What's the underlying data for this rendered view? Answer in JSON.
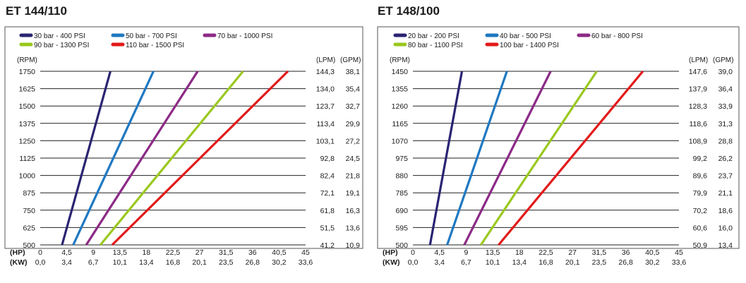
{
  "chart_data": [
    {
      "type": "line",
      "title": "ET 144/110",
      "y_unit_label": "(RPM)",
      "right_unit_labels": [
        "(LPM)",
        "(GPM)"
      ],
      "x_unit_labels": [
        "(HP)",
        "(KW)"
      ],
      "rpm_ticks": [
        "1750",
        "1625",
        "1500",
        "1375",
        "1250",
        "1125",
        "1000",
        "875",
        "750",
        "625",
        "500"
      ],
      "rpm_range": [
        500,
        1750
      ],
      "lpm_ticks": [
        "144,3",
        "134,0",
        "123,7",
        "113,4",
        "103,1",
        "92,8",
        "82,4",
        "72,1",
        "61,8",
        "51,5",
        "41,2"
      ],
      "gpm_ticks": [
        "38,1",
        "35,4",
        "32,7",
        "29,9",
        "27,2",
        "24,5",
        "21,8",
        "19,1",
        "16,3",
        "13,6",
        "10,9"
      ],
      "hp_ticks": [
        "0",
        "4,5",
        "9",
        "13,5",
        "18",
        "22,5",
        "27",
        "31,5",
        "36",
        "40,5",
        "45"
      ],
      "kw_ticks": [
        "0,0",
        "3,4",
        "6,7",
        "10,1",
        "13,4",
        "16,8",
        "20,1",
        "23,5",
        "26,8",
        "30,2",
        "33,6"
      ],
      "hp_range": [
        0,
        45
      ],
      "grid": "horizontal",
      "series": [
        {
          "name": "30 bar - 400 PSI",
          "color": "#2a2472",
          "hp": [
            3.7,
            11.9
          ],
          "rpm": [
            500,
            1750
          ]
        },
        {
          "name": "50 bar - 700 PSI",
          "color": "#1f78c1",
          "hp": [
            5.6,
            19.2
          ],
          "rpm": [
            500,
            1750
          ]
        },
        {
          "name": "70 bar - 1000 PSI",
          "color": "#8c2a86",
          "hp": [
            7.8,
            26.7
          ],
          "rpm": [
            500,
            1750
          ]
        },
        {
          "name": "90 bar - 1300 PSI",
          "color": "#9ac81f",
          "hp": [
            10.2,
            34.4
          ],
          "rpm": [
            500,
            1750
          ]
        },
        {
          "name": "110 bar - 1500 PSI",
          "color": "#e21a1a",
          "hp": [
            12.2,
            42.0
          ],
          "rpm": [
            500,
            1750
          ]
        }
      ]
    },
    {
      "type": "line",
      "title": "ET 148/100",
      "y_unit_label": "(RPM)",
      "right_unit_labels": [
        "(LPM)",
        "(GPM)"
      ],
      "x_unit_labels": [
        "(HP)",
        "(KW)"
      ],
      "rpm_ticks": [
        "1450",
        "1355",
        "1260",
        "1165",
        "1070",
        "975",
        "880",
        "785",
        "690",
        "595",
        "500"
      ],
      "rpm_range": [
        500,
        1450
      ],
      "lpm_ticks": [
        "147,6",
        "137,9",
        "128,3",
        "118,6",
        "108,9",
        "99,2",
        "89,6",
        "79,9",
        "70,2",
        "60,6",
        "50,9"
      ],
      "gpm_ticks": [
        "39,0",
        "36,4",
        "33,9",
        "31,3",
        "28,8",
        "26,2",
        "23,7",
        "21,1",
        "18,6",
        "16,0",
        "13,4"
      ],
      "hp_ticks": [
        "0",
        "4,5",
        "9",
        "13,5",
        "18",
        "22,5",
        "27",
        "31,5",
        "36",
        "40,5",
        "45"
      ],
      "kw_ticks": [
        "0,0",
        "3,4",
        "6,7",
        "10,1",
        "13,4",
        "16,8",
        "20,1",
        "23,5",
        "26,8",
        "30,2",
        "33,6"
      ],
      "hp_range": [
        0,
        45
      ],
      "grid": "horizontal",
      "series": [
        {
          "name": "20 bar - 200 PSI",
          "color": "#2a2472",
          "hp": [
            2.9,
            8.3
          ],
          "rpm": [
            500,
            1450
          ]
        },
        {
          "name": "40 bar - 500 PSI",
          "color": "#1f78c1",
          "hp": [
            5.8,
            15.9
          ],
          "rpm": [
            500,
            1450
          ]
        },
        {
          "name": "60 bar - 800 PSI",
          "color": "#8c2a86",
          "hp": [
            8.7,
            23.3
          ],
          "rpm": [
            500,
            1450
          ]
        },
        {
          "name": "80 bar - 1100 PSI",
          "color": "#9ac81f",
          "hp": [
            11.5,
            31.1
          ],
          "rpm": [
            500,
            1450
          ]
        },
        {
          "name": "100 bar - 1400 PSI",
          "color": "#e21a1a",
          "hp": [
            14.5,
            38.9
          ],
          "rpm": [
            500,
            1450
          ]
        }
      ]
    }
  ]
}
